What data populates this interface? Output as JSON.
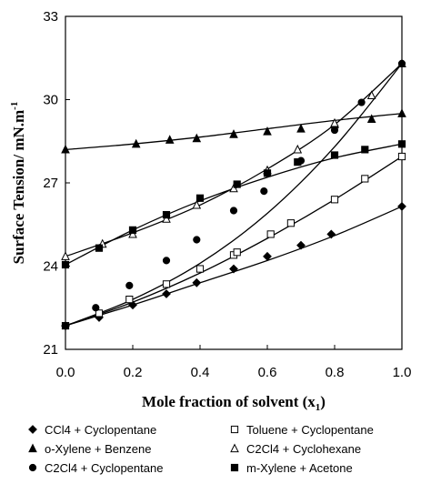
{
  "chart_data": {
    "type": "scatter",
    "xlabel": "Mole fraction of solvent (x",
    "xlabel_sub": "1",
    "xlabel_tail": ")",
    "ylabel": "Surface Tension/ mN.m",
    "ylabel_sup": "-1",
    "xlim": [
      0.0,
      1.0
    ],
    "ylim": [
      21,
      33
    ],
    "x_ticks": [
      0.0,
      0.2,
      0.4,
      0.6,
      0.8,
      1.0
    ],
    "x_tick_labels": [
      "0.0",
      "0.2",
      "0.4",
      "0.6",
      "0.8",
      "1.0"
    ],
    "y_ticks": [
      21,
      24,
      27,
      30,
      33
    ],
    "y_tick_labels": [
      "21",
      "24",
      "27",
      "30",
      "33"
    ],
    "grid": false,
    "legend_placement": "bottom",
    "series": [
      {
        "name": "CCl4 + Cyclopentane",
        "marker": "diamond-filled",
        "points": [
          [
            0.0,
            21.85
          ],
          [
            0.1,
            22.15
          ],
          [
            0.2,
            22.6
          ],
          [
            0.3,
            23.0
          ],
          [
            0.39,
            23.4
          ],
          [
            0.5,
            23.9
          ],
          [
            0.6,
            24.35
          ],
          [
            0.7,
            24.75
          ],
          [
            0.79,
            25.15
          ],
          [
            1.0,
            26.15
          ]
        ],
        "fit": [
          [
            0.0,
            21.85
          ],
          [
            0.2,
            22.6
          ],
          [
            0.4,
            23.4
          ],
          [
            0.6,
            24.2
          ],
          [
            0.8,
            25.1
          ],
          [
            1.0,
            26.15
          ]
        ]
      },
      {
        "name": "Toluene + Cyclopentane",
        "marker": "square-open",
        "points": [
          [
            0.0,
            21.85
          ],
          [
            0.1,
            22.3
          ],
          [
            0.19,
            22.8
          ],
          [
            0.3,
            23.35
          ],
          [
            0.4,
            23.9
          ],
          [
            0.5,
            24.4
          ],
          [
            0.51,
            24.5
          ],
          [
            0.61,
            25.15
          ],
          [
            0.67,
            25.55
          ],
          [
            0.8,
            26.4
          ],
          [
            0.89,
            27.15
          ],
          [
            1.0,
            27.95
          ]
        ],
        "fit": [
          [
            0.0,
            21.85
          ],
          [
            0.2,
            22.7
          ],
          [
            0.4,
            23.75
          ],
          [
            0.6,
            25.0
          ],
          [
            0.8,
            26.4
          ],
          [
            1.0,
            27.95
          ]
        ]
      },
      {
        "name": "o-Xylene + Benzene",
        "marker": "triangle-filled",
        "points": [
          [
            0.0,
            28.2
          ],
          [
            0.21,
            28.4
          ],
          [
            0.31,
            28.55
          ],
          [
            0.39,
            28.6
          ],
          [
            0.5,
            28.75
          ],
          [
            0.6,
            28.85
          ],
          [
            0.7,
            28.95
          ],
          [
            0.8,
            29.1
          ],
          [
            0.91,
            29.3
          ],
          [
            1.0,
            29.5
          ]
        ],
        "fit": [
          [
            0.0,
            28.2
          ],
          [
            0.2,
            28.4
          ],
          [
            0.4,
            28.65
          ],
          [
            0.6,
            28.95
          ],
          [
            0.8,
            29.25
          ],
          [
            1.0,
            29.5
          ]
        ]
      },
      {
        "name": "C2Cl4 + Cyclohexane",
        "marker": "triangle-open",
        "points": [
          [
            0.0,
            24.35
          ],
          [
            0.11,
            24.8
          ],
          [
            0.2,
            25.15
          ],
          [
            0.3,
            25.7
          ],
          [
            0.39,
            26.2
          ],
          [
            0.5,
            26.8
          ],
          [
            0.6,
            27.45
          ],
          [
            0.69,
            28.2
          ],
          [
            0.8,
            29.15
          ],
          [
            0.91,
            30.15
          ],
          [
            1.0,
            31.3
          ]
        ],
        "fit": [
          [
            0.0,
            24.35
          ],
          [
            0.2,
            25.2
          ],
          [
            0.4,
            26.2
          ],
          [
            0.6,
            27.5
          ],
          [
            0.8,
            29.1
          ],
          [
            1.0,
            31.3
          ]
        ]
      },
      {
        "name": "C2Cl4 + Cyclopentane",
        "marker": "circle-filled",
        "points": [
          [
            0.0,
            21.85
          ],
          [
            0.09,
            22.5
          ],
          [
            0.19,
            23.3
          ],
          [
            0.3,
            24.2
          ],
          [
            0.39,
            24.95
          ],
          [
            0.5,
            26.0
          ],
          [
            0.59,
            26.7
          ],
          [
            0.7,
            27.8
          ],
          [
            0.8,
            28.9
          ],
          [
            0.88,
            29.9
          ],
          [
            1.0,
            31.3
          ]
        ],
        "fit": [
          [
            0.0,
            21.85
          ],
          [
            0.2,
            22.8
          ],
          [
            0.4,
            24.1
          ],
          [
            0.6,
            25.9
          ],
          [
            0.8,
            28.3
          ],
          [
            1.0,
            31.3
          ]
        ]
      },
      {
        "name": "m-Xylene + Acetone",
        "marker": "square-filled",
        "points": [
          [
            0.0,
            24.05
          ],
          [
            0.1,
            24.65
          ],
          [
            0.2,
            25.3
          ],
          [
            0.3,
            25.85
          ],
          [
            0.4,
            26.45
          ],
          [
            0.51,
            26.95
          ],
          [
            0.6,
            27.35
          ],
          [
            0.69,
            27.75
          ],
          [
            0.8,
            28.0
          ],
          [
            0.89,
            28.2
          ],
          [
            1.0,
            28.4
          ]
        ],
        "fit": [
          [
            0.0,
            24.05
          ],
          [
            0.2,
            25.3
          ],
          [
            0.4,
            26.35
          ],
          [
            0.6,
            27.2
          ],
          [
            0.8,
            27.9
          ],
          [
            1.0,
            28.4
          ]
        ]
      }
    ]
  }
}
